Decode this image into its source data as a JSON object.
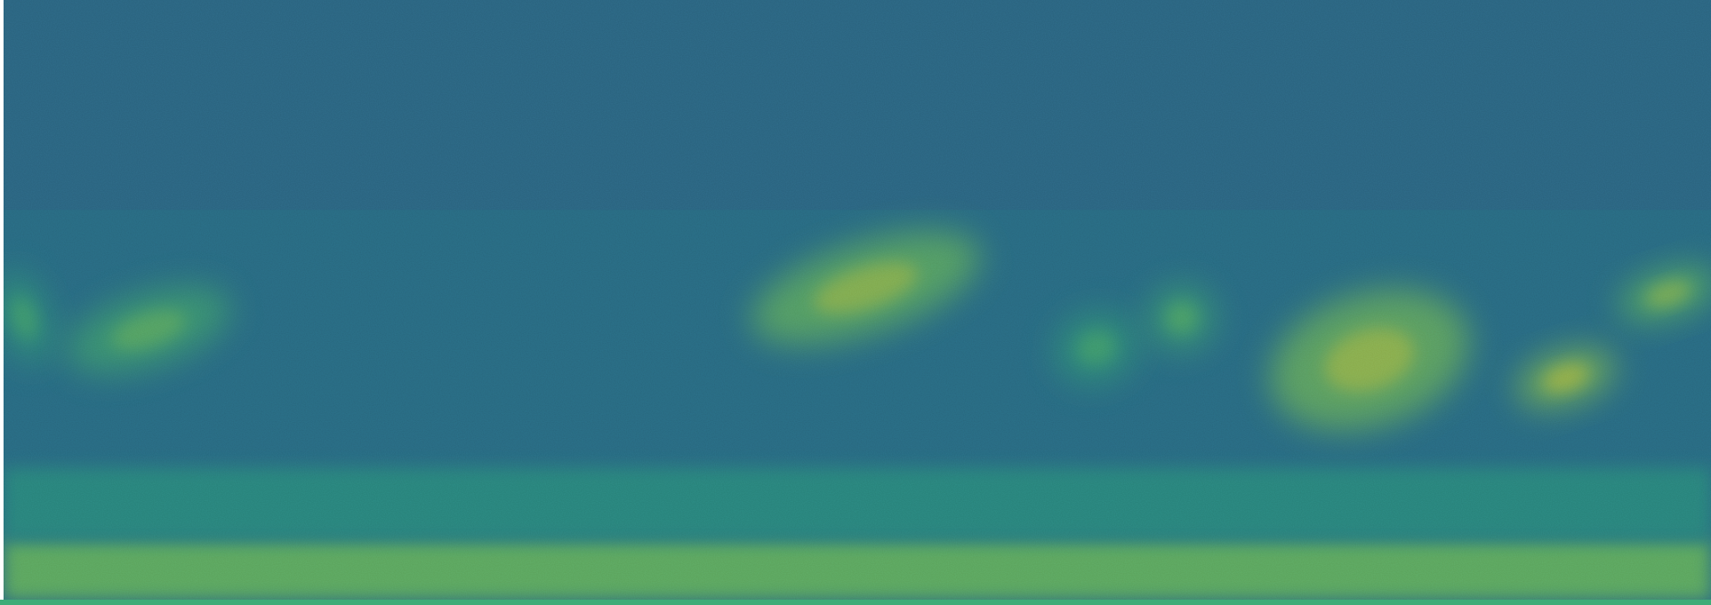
{
  "chart_data": {
    "type": "heatmap",
    "title": "",
    "xlabel": "",
    "ylabel": "",
    "axes_visible": false,
    "grid": false,
    "legend": "none",
    "colormap": "viridis",
    "value_range": [
      0,
      1
    ],
    "x_range": [
      0,
      1
    ],
    "y_range": [
      0,
      1
    ],
    "background_level": 0.38,
    "colors": {
      "low": "#440154",
      "mid_low": "#3b528b",
      "mid": "#21918c",
      "mid_high": "#5ec962",
      "high": "#fde725"
    },
    "regions": [
      {
        "name": "bottom-band",
        "x": [
          0.0,
          1.0
        ],
        "y": [
          0.0,
          0.1
        ],
        "intensity": 0.8
      },
      {
        "name": "low-haze",
        "x": [
          0.0,
          1.0
        ],
        "y": [
          0.1,
          0.22
        ],
        "intensity": 0.55
      },
      {
        "name": "blob-1",
        "x_center": 0.012,
        "y_center": 0.47,
        "x_span": 0.03,
        "y_span": 0.16,
        "intensity": 0.6
      },
      {
        "name": "blob-2",
        "x_center": 0.085,
        "y_center": 0.45,
        "x_span": 0.1,
        "y_span": 0.12,
        "intensity": 0.68
      },
      {
        "name": "blob-3",
        "x_center": 0.505,
        "y_center": 0.52,
        "x_span": 0.14,
        "y_span": 0.15,
        "intensity": 0.8
      },
      {
        "name": "blob-4",
        "x_center": 0.64,
        "y_center": 0.42,
        "x_span": 0.05,
        "y_span": 0.12,
        "intensity": 0.6
      },
      {
        "name": "blob-5",
        "x_center": 0.69,
        "y_center": 0.47,
        "x_span": 0.04,
        "y_span": 0.11,
        "intensity": 0.65
      },
      {
        "name": "blob-6",
        "x_center": 0.8,
        "y_center": 0.4,
        "x_span": 0.12,
        "y_span": 0.22,
        "intensity": 0.82
      },
      {
        "name": "blob-7",
        "x_center": 0.915,
        "y_center": 0.37,
        "x_span": 0.06,
        "y_span": 0.09,
        "intensity": 0.85
      },
      {
        "name": "blob-8",
        "x_center": 0.975,
        "y_center": 0.51,
        "x_span": 0.06,
        "y_span": 0.08,
        "intensity": 0.78
      }
    ]
  }
}
